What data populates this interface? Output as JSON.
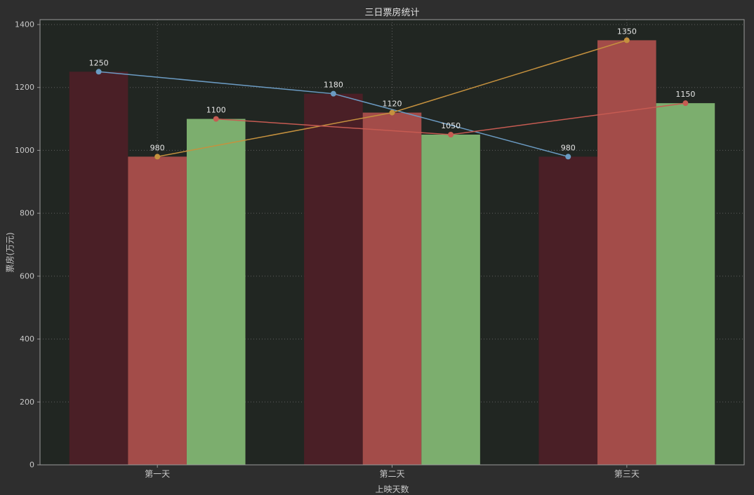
{
  "chart_data": {
    "type": "bar",
    "title": "三日票房统计",
    "xlabel": "上映天数",
    "ylabel": "票房(万元)",
    "categories": [
      "第一天",
      "第二天",
      "第三天"
    ],
    "series": [
      {
        "name": "dark-red-series",
        "values": [
          1250,
          1180,
          980
        ],
        "bar_color": "#4a1f26",
        "line_color": "#6b9bc3"
      },
      {
        "name": "brick-red-series",
        "values": [
          980,
          1120,
          1350
        ],
        "bar_color": "#a34c49",
        "line_color": "#c5913e"
      },
      {
        "name": "green-series",
        "values": [
          1100,
          1050,
          1150
        ],
        "bar_color": "#7cae6e",
        "line_color": "#c65b52"
      }
    ],
    "ylim": [
      0,
      1400
    ],
    "yticks": [
      0,
      200,
      400,
      600,
      800,
      1000,
      1200,
      1400
    ],
    "grid": true,
    "legend": "none",
    "marker_style": "circle",
    "colors": {
      "figure_bg": "#2e2e2e",
      "plot_bg": "#212622",
      "frame": "#999999",
      "grid": "#5f5f5f",
      "tick_text": "#c8c8c8",
      "title_text": "#e0e0e0",
      "value_label": "#e6e6e6"
    }
  }
}
